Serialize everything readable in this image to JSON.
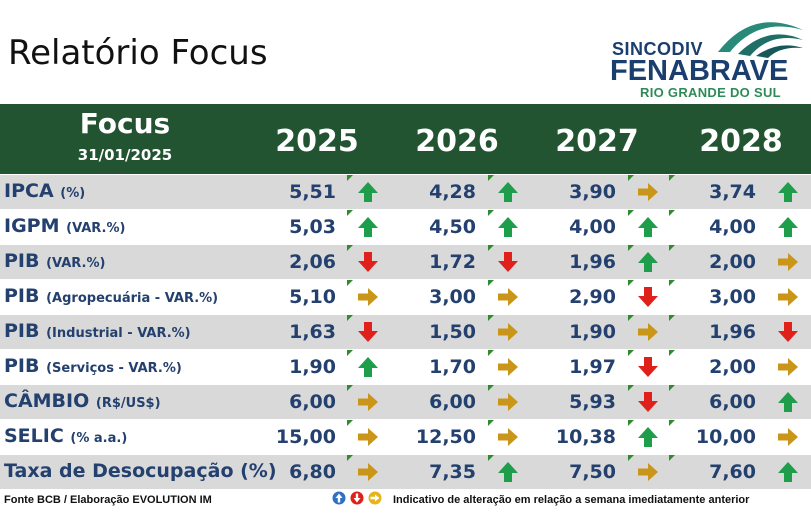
{
  "page_title": "Relatório Focus",
  "logo": {
    "line1": "SINCODIV",
    "line2": "FENABRAVE",
    "line3": "RIO GRANDE DO SUL"
  },
  "header": {
    "title": "Focus",
    "date": "31/01/2025",
    "years": [
      "2025",
      "2026",
      "2027",
      "2028"
    ]
  },
  "rows": [
    {
      "name": "IPCA",
      "unit": "(%)",
      "values": [
        "5,51",
        "4,28",
        "3,90",
        "3,74"
      ],
      "trends": [
        "up",
        "up",
        "right",
        "up"
      ]
    },
    {
      "name": "IGPM",
      "unit": "(VAR.%)",
      "values": [
        "5,03",
        "4,50",
        "4,00",
        "4,00"
      ],
      "trends": [
        "up",
        "up",
        "up",
        "up"
      ]
    },
    {
      "name": "PIB",
      "unit": "(VAR.%)",
      "values": [
        "2,06",
        "1,72",
        "1,96",
        "2,00"
      ],
      "trends": [
        "down",
        "down",
        "up",
        "right"
      ]
    },
    {
      "name": "PIB",
      "unit": "(Agropecuária - VAR.%)",
      "values": [
        "5,10",
        "3,00",
        "2,90",
        "3,00"
      ],
      "trends": [
        "right",
        "right",
        "down",
        "right"
      ]
    },
    {
      "name": "PIB",
      "unit": "(Industrial - VAR.%)",
      "values": [
        "1,63",
        "1,50",
        "1,90",
        "1,96"
      ],
      "trends": [
        "down",
        "right",
        "right",
        "down"
      ]
    },
    {
      "name": "PIB",
      "unit": "(Serviços - VAR.%)",
      "values": [
        "1,90",
        "1,70",
        "1,97",
        "2,00"
      ],
      "trends": [
        "up",
        "right",
        "down",
        "right"
      ]
    },
    {
      "name": "CÂMBIO",
      "unit": "(R$/US$)",
      "values": [
        "6,00",
        "6,00",
        "5,93",
        "6,00"
      ],
      "trends": [
        "right",
        "right",
        "down",
        "up"
      ]
    },
    {
      "name": "SELIC",
      "unit": "(% a.a.)",
      "values": [
        "15,00",
        "12,50",
        "10,38",
        "10,00"
      ],
      "trends": [
        "right",
        "right",
        "up",
        "right"
      ]
    },
    {
      "name": "Taxa de Desocupação (%)",
      "unit": "",
      "values": [
        "6,80",
        "7,35",
        "7,50",
        "7,60"
      ],
      "trends": [
        "right",
        "up",
        "right",
        "up"
      ]
    }
  ],
  "footer": {
    "source": "Fonte BCB / Elaboração EVOLUTION IM",
    "legend": "Indicativo de alteração em relação a semana imediatamente anterior"
  },
  "colors": {
    "header_bg": "#235432",
    "up": "#1e9e4a",
    "down": "#e0201b",
    "right": "#c9961a",
    "text": "#23406e"
  }
}
